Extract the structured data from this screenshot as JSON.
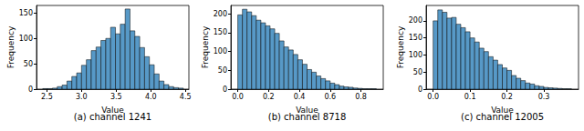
{
  "chart_data": [
    {
      "type": "histogram",
      "title": "(a) channel 1241",
      "xlabel": "Value",
      "ylabel": "Frequency",
      "bins": [
        2.44,
        2.51,
        2.58,
        2.65,
        2.72,
        2.79,
        2.86,
        2.93,
        3.0,
        3.07,
        3.14,
        3.21,
        3.28,
        3.35,
        3.42,
        3.49,
        3.56,
        3.63,
        3.7,
        3.77,
        3.84,
        3.91,
        3.98,
        4.05,
        4.12,
        4.19,
        4.26,
        4.33,
        4.4,
        4.47
      ],
      "counts": [
        1,
        1,
        2,
        5,
        8,
        16,
        25,
        32,
        47,
        58,
        76,
        83,
        96,
        100,
        122,
        109,
        128,
        158,
        115,
        104,
        82,
        64,
        48,
        30,
        16,
        9,
        5,
        3,
        2
      ],
      "color": "#5799c7",
      "xlim": [
        2.35,
        4.55
      ],
      "ylim": [
        0,
        165
      ],
      "xticks": [
        2.5,
        {
          "value": 3,
          "label": "3.0"
        },
        3.5,
        {
          "value": 4,
          "label": "4.0"
        },
        4.5
      ],
      "yticks": [
        0,
        50,
        100,
        150
      ],
      "grid": false
    },
    {
      "type": "histogram",
      "title": "(b) channel 8718",
      "xlabel": "Value",
      "ylabel": "Frequency",
      "bins": [
        0,
        0.03,
        0.06,
        0.09,
        0.12,
        0.15,
        0.18,
        0.21,
        0.24,
        0.27,
        0.3,
        0.33,
        0.36,
        0.39,
        0.42,
        0.45,
        0.48,
        0.51,
        0.54,
        0.57,
        0.6,
        0.63,
        0.66,
        0.69,
        0.72,
        0.75,
        0.78,
        0.81,
        0.84,
        0.87,
        0.9
      ],
      "counts": [
        197,
        212,
        205,
        195,
        183,
        176,
        168,
        160,
        148,
        128,
        112,
        104,
        92,
        78,
        66,
        52,
        45,
        35,
        28,
        22,
        16,
        12,
        8,
        6,
        5,
        3,
        2,
        1,
        1,
        1
      ],
      "color": "#5799c7",
      "xlim": [
        -0.045,
        0.945
      ],
      "ylim": [
        0,
        222
      ],
      "xticks": [
        {
          "value": 0,
          "label": "0.0"
        },
        0.2,
        0.4,
        0.6,
        0.8
      ],
      "yticks": [
        0,
        50,
        100,
        150,
        200
      ],
      "grid": false
    },
    {
      "type": "histogram",
      "title": "(c) channel 12005",
      "xlabel": "Value",
      "ylabel": "Frequency",
      "bins": [
        0,
        0.0125,
        0.025,
        0.0375,
        0.05,
        0.0625,
        0.075,
        0.0875,
        0.1,
        0.1125,
        0.125,
        0.1375,
        0.15,
        0.1625,
        0.175,
        0.1875,
        0.2,
        0.2125,
        0.225,
        0.2375,
        0.25,
        0.2625,
        0.275,
        0.2875,
        0.3,
        0.3125,
        0.325,
        0.3375,
        0.35,
        0.3625,
        0.375
      ],
      "counts": [
        200,
        232,
        225,
        208,
        210,
        190,
        180,
        168,
        150,
        138,
        120,
        110,
        95,
        85,
        72,
        62,
        55,
        40,
        32,
        25,
        18,
        15,
        10,
        8,
        5,
        4,
        3,
        2,
        1,
        1
      ],
      "color": "#5799c7",
      "xlim": [
        -0.019,
        0.394
      ],
      "ylim": [
        0,
        245
      ],
      "xticks": [
        {
          "value": 0,
          "label": "0.0"
        },
        0.1,
        0.2,
        0.3
      ],
      "yticks": [
        0,
        50,
        100,
        150,
        200
      ],
      "grid": false
    }
  ]
}
